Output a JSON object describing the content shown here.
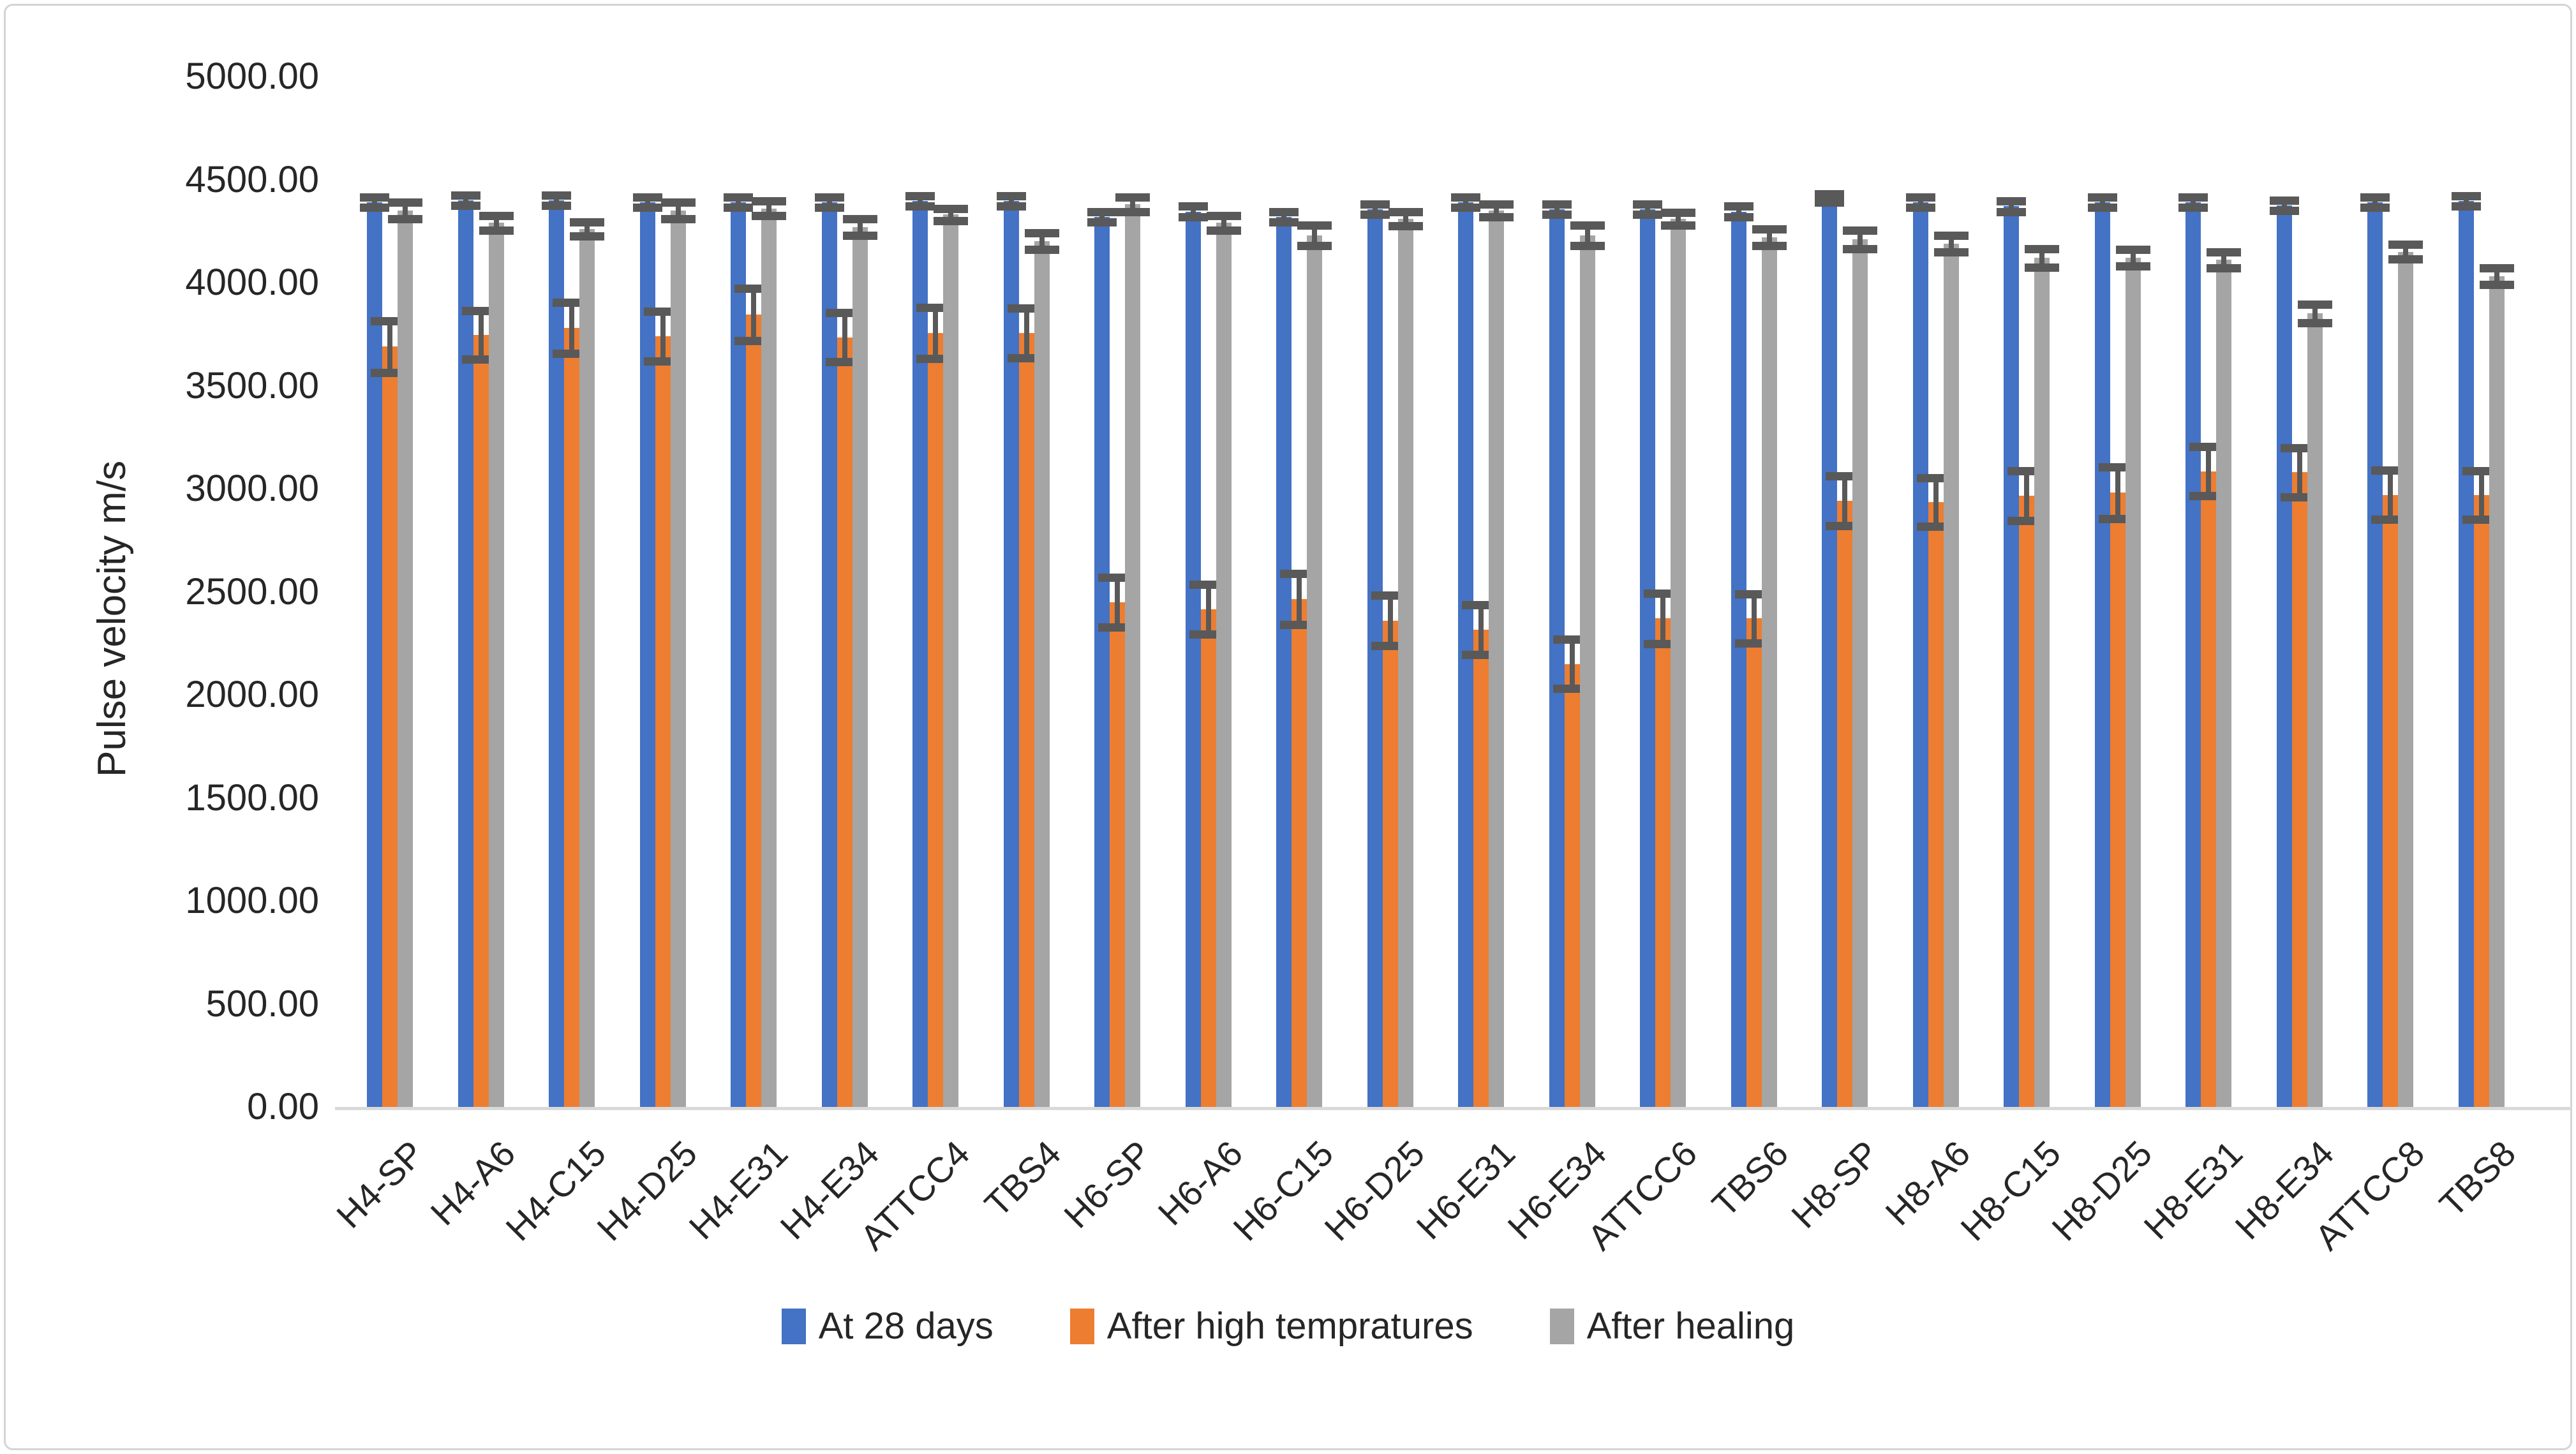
{
  "figure": {
    "background": "#ffffff",
    "border_color": "#d4d4d4"
  },
  "chart_data": {
    "type": "bar",
    "title": "",
    "xlabel": "",
    "ylabel": "Pulse velocity m/s",
    "ylim": [
      0,
      5000
    ],
    "y_tick_step": 500,
    "y_tick_labels": [
      "0.00",
      "500.00",
      "1000.00",
      "1500.00",
      "2000.00",
      "2500.00",
      "3000.00",
      "3500.00",
      "4000.00",
      "4500.00",
      "5000.00"
    ],
    "grid": false,
    "legend_position": "bottom",
    "error_bars": true,
    "error_bar_color": "#595959",
    "axis_line_color": "#d9d9d9",
    "categories": [
      "H4-SP",
      "H4-A6",
      "H4-C15",
      "H4-D25",
      "H4-E31",
      "H4-E34",
      "ATTCC4",
      "TBS4",
      "H6-SP",
      "H6-A6",
      "H6-C15",
      "H6-D25",
      "H6-E31",
      "H6-E34",
      "ATTCC6",
      "TBS6",
      "H8-SP",
      "H8-A6",
      "H8-C15",
      "H8-D25",
      "H8-E31",
      "H8-E34",
      "ATTCC8",
      "TBS8"
    ],
    "series": [
      {
        "name": "At 28 days",
        "color": "#4472C4",
        "values": [
          4390,
          4400,
          4400,
          4390,
          4390,
          4390,
          4395,
          4395,
          4320,
          4345,
          4320,
          4355,
          4390,
          4355,
          4355,
          4345,
          4410,
          4390,
          4370,
          4390,
          4390,
          4375,
          4390,
          4395
        ],
        "errors": [
          25,
          25,
          25,
          25,
          25,
          25,
          25,
          25,
          25,
          25,
          25,
          25,
          25,
          25,
          25,
          25,
          20,
          25,
          25,
          25,
          25,
          25,
          25,
          25
        ]
      },
      {
        "name": "After high tempratures",
        "color": "#ED7D31",
        "values": [
          3690,
          3745,
          3780,
          3740,
          3845,
          3735,
          3755,
          3755,
          2450,
          2415,
          2465,
          2360,
          2315,
          2150,
          2370,
          2370,
          2940,
          2935,
          2965,
          2980,
          3085,
          3080,
          2970,
          2970
        ],
        "errors": [
          125,
          118,
          124,
          122,
          127,
          120,
          123,
          120,
          121,
          120,
          123,
          122,
          121,
          119,
          121,
          120,
          121,
          119,
          121,
          124,
          120,
          119,
          119,
          118
        ]
      },
      {
        "name": "After healing",
        "color": "#A5A5A5",
        "values": [
          4350,
          4290,
          4260,
          4350,
          4360,
          4270,
          4330,
          4200,
          4380,
          4290,
          4230,
          4310,
          4350,
          4230,
          4310,
          4220,
          4210,
          4190,
          4120,
          4120,
          4110,
          3850,
          4150,
          4030
        ],
        "errors": [
          40,
          35,
          35,
          40,
          35,
          40,
          30,
          40,
          35,
          35,
          50,
          35,
          30,
          50,
          30,
          40,
          45,
          40,
          45,
          40,
          40,
          45,
          35,
          40
        ]
      }
    ]
  }
}
